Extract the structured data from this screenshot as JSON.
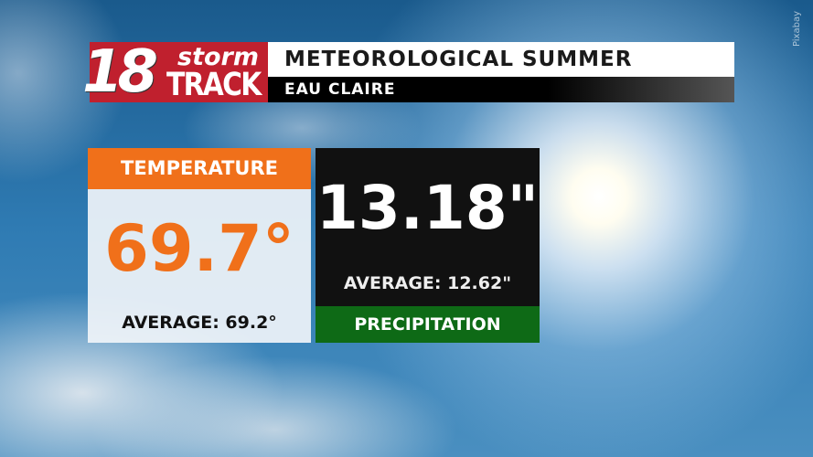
{
  "logo": {
    "number": "18",
    "word1": "storm",
    "word2": "TRACK",
    "color": "#c0202e"
  },
  "header": {
    "title": "METEOROLOGICAL SUMMER",
    "subtitle": "EAU CLAIRE"
  },
  "temperature": {
    "label": "TEMPERATURE",
    "value": "69.7°",
    "average": "AVERAGE: 69.2°",
    "accent": "#f0701a"
  },
  "precipitation": {
    "label": "PRECIPITATION",
    "value": "13.18\"",
    "average": "AVERAGE: 12.62\"",
    "accent": "#0e6a16"
  },
  "credit": "Pixabay"
}
